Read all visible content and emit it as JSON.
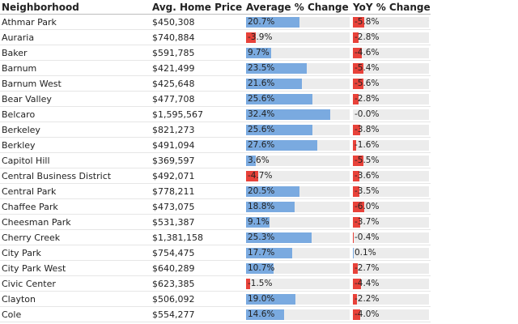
{
  "table": {
    "headers": {
      "neighborhood": "Neighborhood",
      "price": "Avg. Home Price",
      "avg_change": "Average % Change",
      "yoy_change": "YoY % Change"
    },
    "colors": {
      "positive": "#7aaae0",
      "negative": "#e8423a",
      "track": "#ececec"
    },
    "scale": {
      "avg_change_max": 40,
      "yoy_change_max": 40
    },
    "rows": [
      {
        "neighborhood": "Athmar Park",
        "price": "$450,308",
        "avg": 20.7,
        "avg_label": "20.7%",
        "yoy": -5.8,
        "yoy_label": "-5.8%"
      },
      {
        "neighborhood": "Auraria",
        "price": "$740,884",
        "avg": -3.9,
        "avg_label": "-3.9%",
        "yoy": -2.8,
        "yoy_label": "-2.8%"
      },
      {
        "neighborhood": "Baker",
        "price": "$591,785",
        "avg": 9.7,
        "avg_label": "9.7%",
        "yoy": -4.6,
        "yoy_label": "-4.6%"
      },
      {
        "neighborhood": "Barnum",
        "price": "$421,499",
        "avg": 23.5,
        "avg_label": "23.5%",
        "yoy": -5.4,
        "yoy_label": "-5.4%"
      },
      {
        "neighborhood": "Barnum West",
        "price": "$425,648",
        "avg": 21.6,
        "avg_label": "21.6%",
        "yoy": -5.6,
        "yoy_label": "-5.6%"
      },
      {
        "neighborhood": "Bear Valley",
        "price": "$477,708",
        "avg": 25.6,
        "avg_label": "25.6%",
        "yoy": -2.8,
        "yoy_label": "-2.8%"
      },
      {
        "neighborhood": "Belcaro",
        "price": "$1,595,567",
        "avg": 32.4,
        "avg_label": "32.4%",
        "yoy": -0.0,
        "yoy_label": "-0.0%"
      },
      {
        "neighborhood": "Berkeley",
        "price": "$821,273",
        "avg": 25.6,
        "avg_label": "25.6%",
        "yoy": -3.8,
        "yoy_label": "-3.8%"
      },
      {
        "neighborhood": "Berkley",
        "price": "$491,094",
        "avg": 27.6,
        "avg_label": "27.6%",
        "yoy": -1.6,
        "yoy_label": "-1.6%"
      },
      {
        "neighborhood": "Capitol Hill",
        "price": "$369,597",
        "avg": 3.6,
        "avg_label": "3.6%",
        "yoy": -5.5,
        "yoy_label": "-5.5%"
      },
      {
        "neighborhood": "Central Business District",
        "price": "$492,071",
        "avg": -4.7,
        "avg_label": "-4.7%",
        "yoy": -3.6,
        "yoy_label": "-3.6%"
      },
      {
        "neighborhood": "Central Park",
        "price": "$778,211",
        "avg": 20.5,
        "avg_label": "20.5%",
        "yoy": -3.5,
        "yoy_label": "-3.5%"
      },
      {
        "neighborhood": "Chaffee Park",
        "price": "$473,075",
        "avg": 18.8,
        "avg_label": "18.8%",
        "yoy": -6.0,
        "yoy_label": "-6.0%"
      },
      {
        "neighborhood": "Cheesman Park",
        "price": "$531,387",
        "avg": 9.1,
        "avg_label": "9.1%",
        "yoy": -3.7,
        "yoy_label": "-3.7%"
      },
      {
        "neighborhood": "Cherry Creek",
        "price": "$1,381,158",
        "avg": 25.3,
        "avg_label": "25.3%",
        "yoy": -0.4,
        "yoy_label": "-0.4%"
      },
      {
        "neighborhood": "City Park",
        "price": "$754,475",
        "avg": 17.7,
        "avg_label": "17.7%",
        "yoy": 0.1,
        "yoy_label": "0.1%"
      },
      {
        "neighborhood": "City Park West",
        "price": "$640,289",
        "avg": 10.7,
        "avg_label": "10.7%",
        "yoy": -2.7,
        "yoy_label": "-2.7%"
      },
      {
        "neighborhood": "Civic Center",
        "price": "$623,385",
        "avg": -1.5,
        "avg_label": "-1.5%",
        "yoy": -4.4,
        "yoy_label": "-4.4%"
      },
      {
        "neighborhood": "Clayton",
        "price": "$506,092",
        "avg": 19.0,
        "avg_label": "19.0%",
        "yoy": -2.2,
        "yoy_label": "-2.2%"
      },
      {
        "neighborhood": "Cole",
        "price": "$554,277",
        "avg": 14.6,
        "avg_label": "14.6%",
        "yoy": -4.0,
        "yoy_label": "-4.0%"
      }
    ]
  },
  "chart_data": {
    "type": "table",
    "columns": [
      "Neighborhood",
      "Avg. Home Price",
      "Average % Change",
      "YoY % Change"
    ],
    "rows": [
      [
        "Athmar Park",
        "$450,308",
        20.7,
        -5.8
      ],
      [
        "Auraria",
        "$740,884",
        -3.9,
        -2.8
      ],
      [
        "Baker",
        "$591,785",
        9.7,
        -4.6
      ],
      [
        "Barnum",
        "$421,499",
        23.5,
        -5.4
      ],
      [
        "Barnum West",
        "$425,648",
        21.6,
        -5.6
      ],
      [
        "Bear Valley",
        "$477,708",
        25.6,
        -2.8
      ],
      [
        "Belcaro",
        "$1,595,567",
        32.4,
        -0.0
      ],
      [
        "Berkeley",
        "$821,273",
        25.6,
        -3.8
      ],
      [
        "Berkley",
        "$491,094",
        27.6,
        -1.6
      ],
      [
        "Capitol Hill",
        "$369,597",
        3.6,
        -5.5
      ],
      [
        "Central Business District",
        "$492,071",
        -4.7,
        -3.6
      ],
      [
        "Central Park",
        "$778,211",
        20.5,
        -3.5
      ],
      [
        "Chaffee Park",
        "$473,075",
        18.8,
        -6.0
      ],
      [
        "Cheesman Park",
        "$531,387",
        9.1,
        -3.7
      ],
      [
        "Cherry Creek",
        "$1,381,158",
        25.3,
        -0.4
      ],
      [
        "City Park",
        "$754,475",
        17.7,
        0.1
      ],
      [
        "City Park West",
        "$640,289",
        10.7,
        -2.7
      ],
      [
        "Civic Center",
        "$623,385",
        -1.5,
        -4.4
      ],
      [
        "Clayton",
        "$506,092",
        19.0,
        -2.2
      ],
      [
        "Cole",
        "$554,277",
        14.6,
        -4.0
      ]
    ]
  }
}
